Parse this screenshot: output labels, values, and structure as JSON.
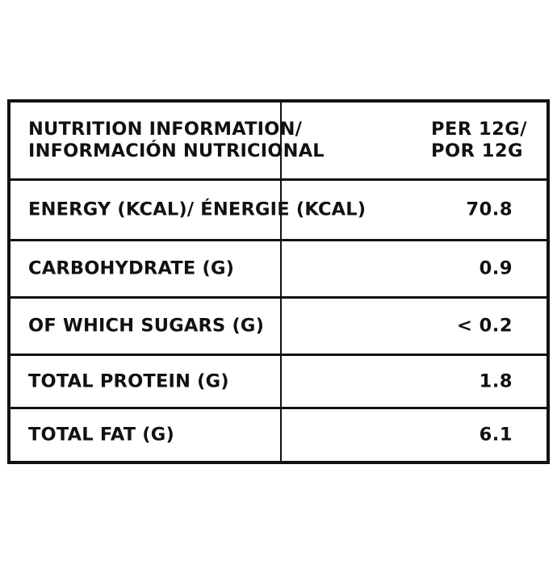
{
  "table": {
    "header": {
      "label_line1": "NUTRITION INFORMATION/",
      "label_line2": "INFORMACIÓN NUTRICIONAL",
      "value_line1": "PER 12G/",
      "value_line2": "POR 12G"
    },
    "rows": [
      {
        "label": "ENERGY (KCAL)/ ÉNERGIE (KCAL)",
        "value": "70.8"
      },
      {
        "label": "CARBOHYDRATE (G)",
        "value": "0.9"
      },
      {
        "label": "OF WHICH SUGARS (G)",
        "value": "< 0.2"
      },
      {
        "label": "TOTAL PROTEIN (G)",
        "value": "1.8"
      },
      {
        "label": "TOTAL FAT (G)",
        "value": "6.1"
      }
    ]
  }
}
